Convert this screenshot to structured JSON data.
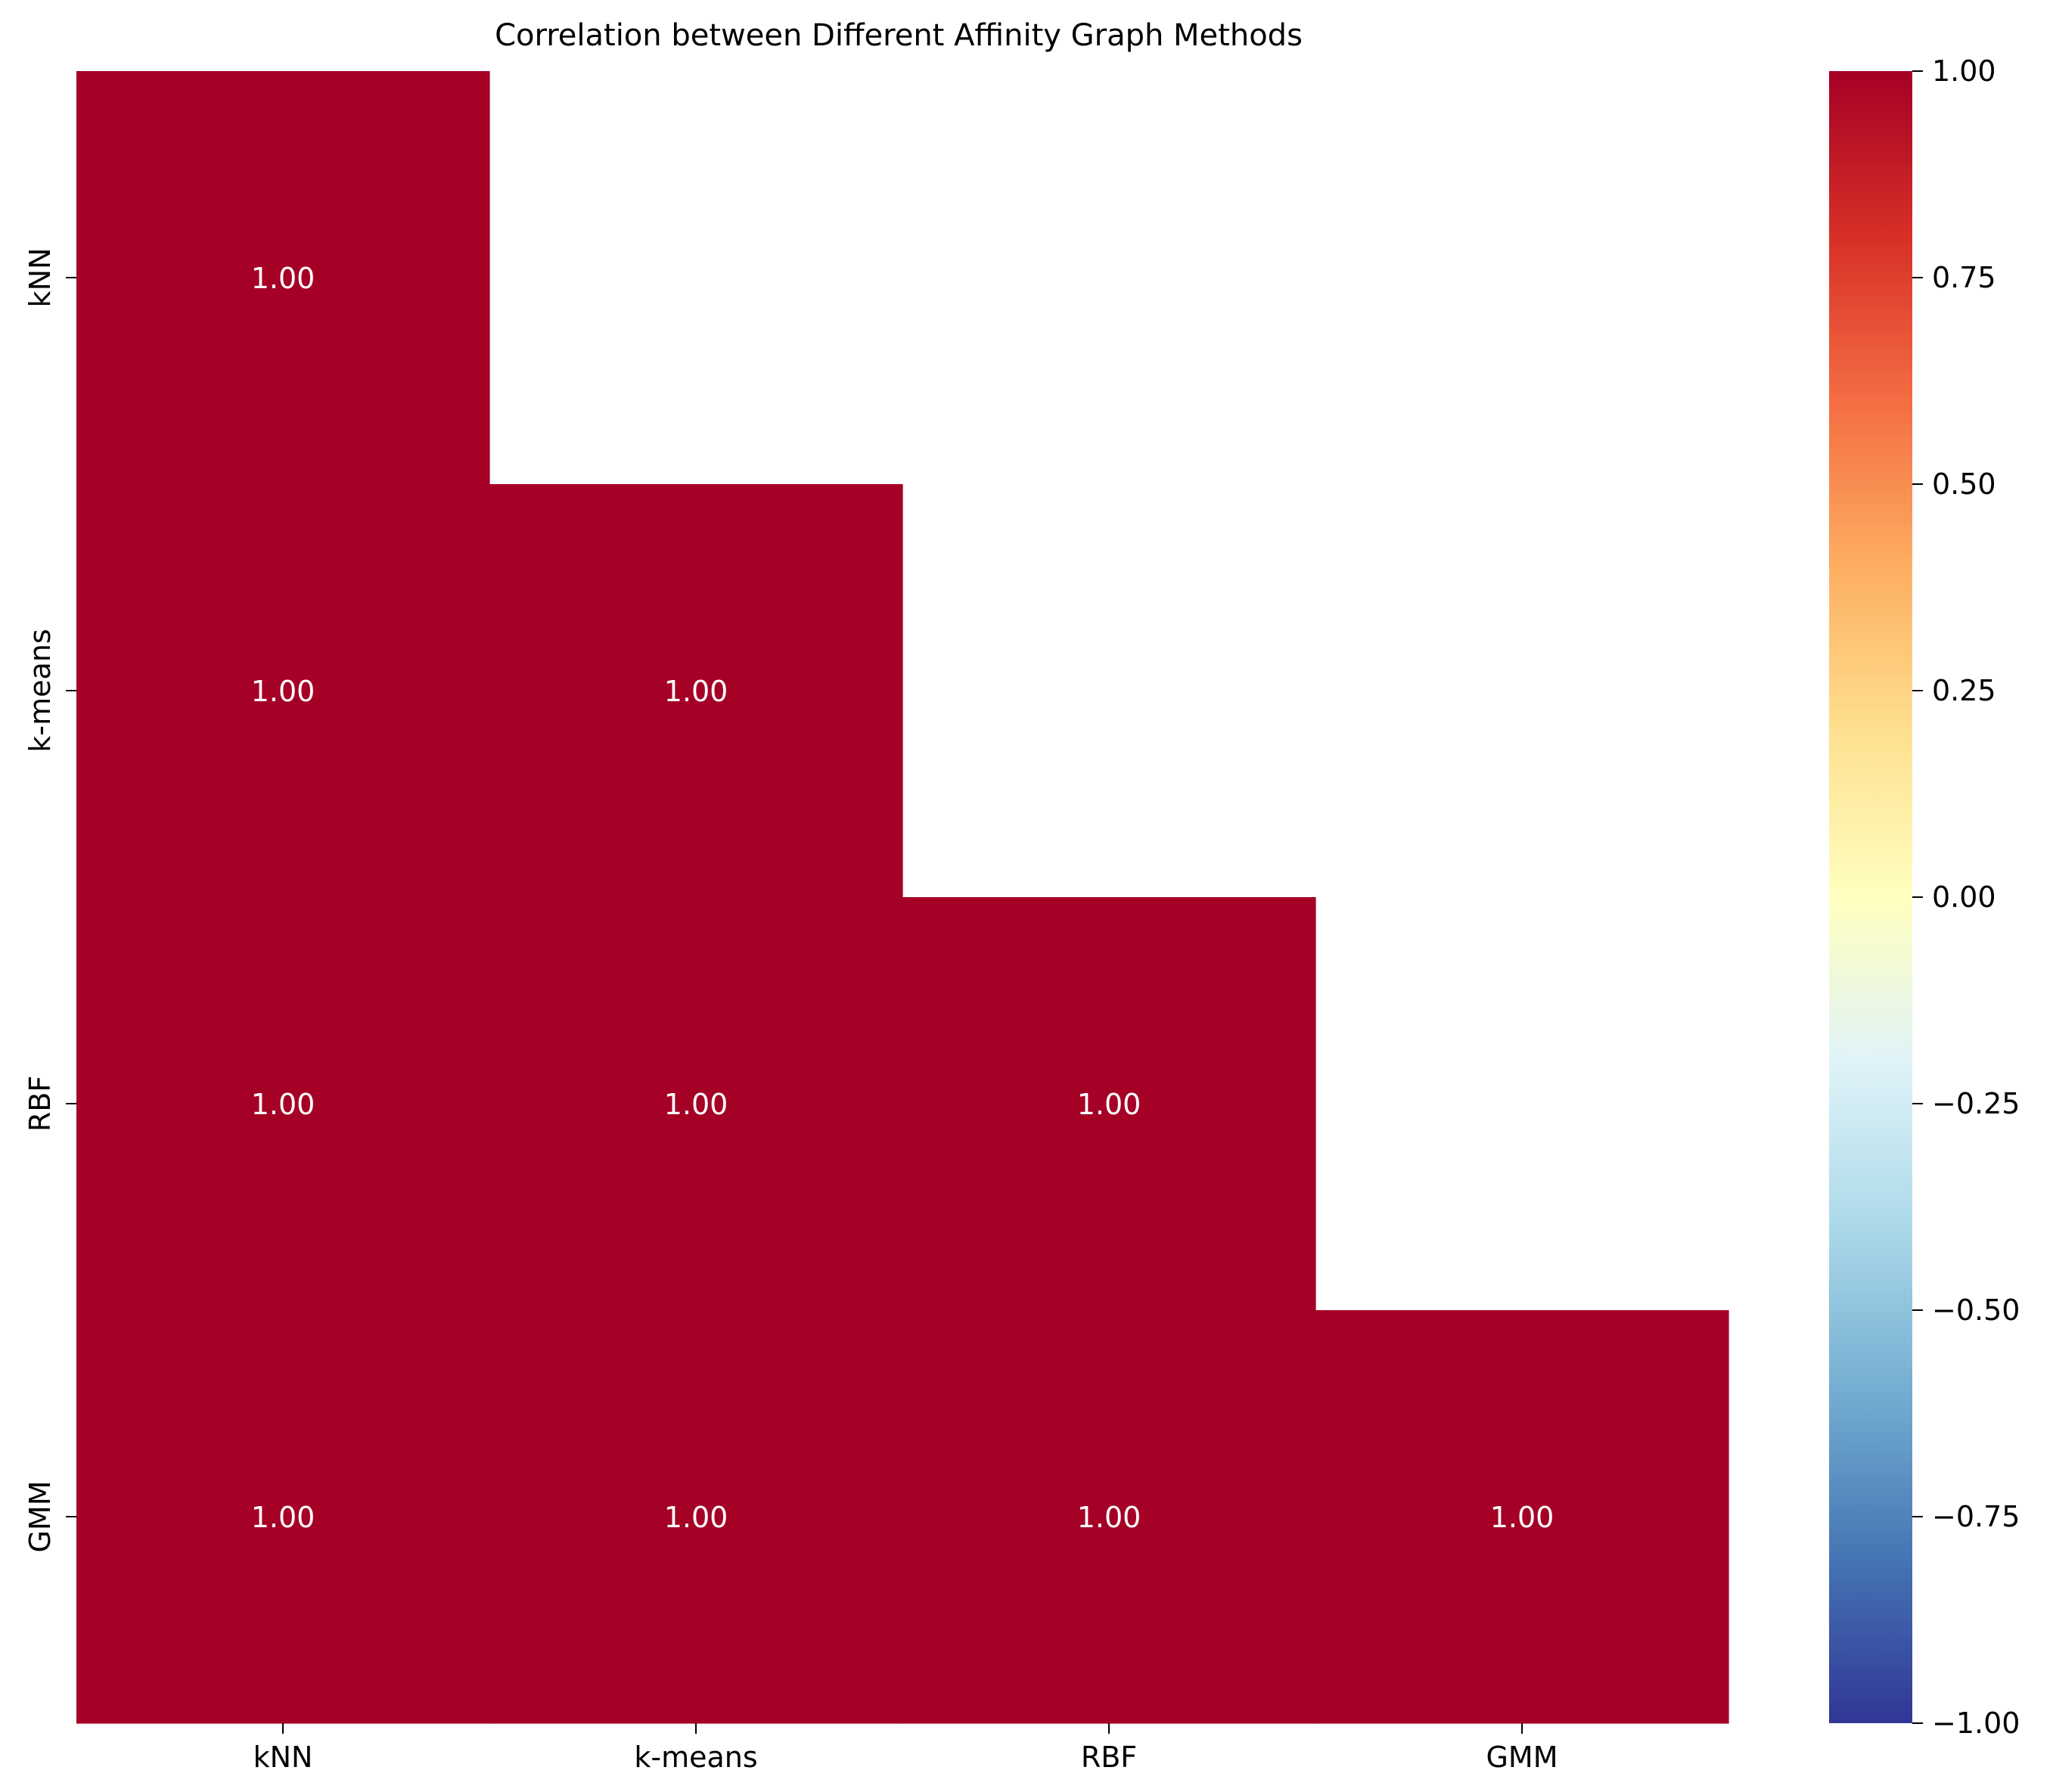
{
  "chart_data": {
    "type": "heatmap",
    "title": "Correlation between Different Affinity Graph Methods",
    "xlabel": "",
    "ylabel": "",
    "categories": [
      "kNN",
      "k-means",
      "RBF",
      "GMM"
    ],
    "mask": "upper-triangle",
    "cells": [
      {
        "row": "kNN",
        "col": "kNN",
        "value": 1.0,
        "label": "1.00"
      },
      {
        "row": "k-means",
        "col": "kNN",
        "value": 1.0,
        "label": "1.00"
      },
      {
        "row": "k-means",
        "col": "k-means",
        "value": 1.0,
        "label": "1.00"
      },
      {
        "row": "RBF",
        "col": "kNN",
        "value": 1.0,
        "label": "1.00"
      },
      {
        "row": "RBF",
        "col": "k-means",
        "value": 1.0,
        "label": "1.00"
      },
      {
        "row": "RBF",
        "col": "RBF",
        "value": 1.0,
        "label": "1.00"
      },
      {
        "row": "GMM",
        "col": "kNN",
        "value": 1.0,
        "label": "1.00"
      },
      {
        "row": "GMM",
        "col": "k-means",
        "value": 1.0,
        "label": "1.00"
      },
      {
        "row": "GMM",
        "col": "RBF",
        "value": 1.0,
        "label": "1.00"
      },
      {
        "row": "GMM",
        "col": "GMM",
        "value": 1.0,
        "label": "1.00"
      }
    ],
    "colorbar": {
      "colormap": "RdYlBu_r",
      "range": [
        -1.0,
        1.0
      ],
      "ticks": [
        1.0,
        0.75,
        0.5,
        0.25,
        0.0,
        -0.25,
        -0.5,
        -0.75,
        -1.0
      ],
      "tick_labels": [
        "1.00",
        "0.75",
        "0.50",
        "0.25",
        "0.00",
        "−0.25",
        "−0.50",
        "−0.75",
        "−1.00"
      ]
    },
    "colors": {
      "high": "#a50026",
      "annotation_text": "#ffffff"
    }
  }
}
